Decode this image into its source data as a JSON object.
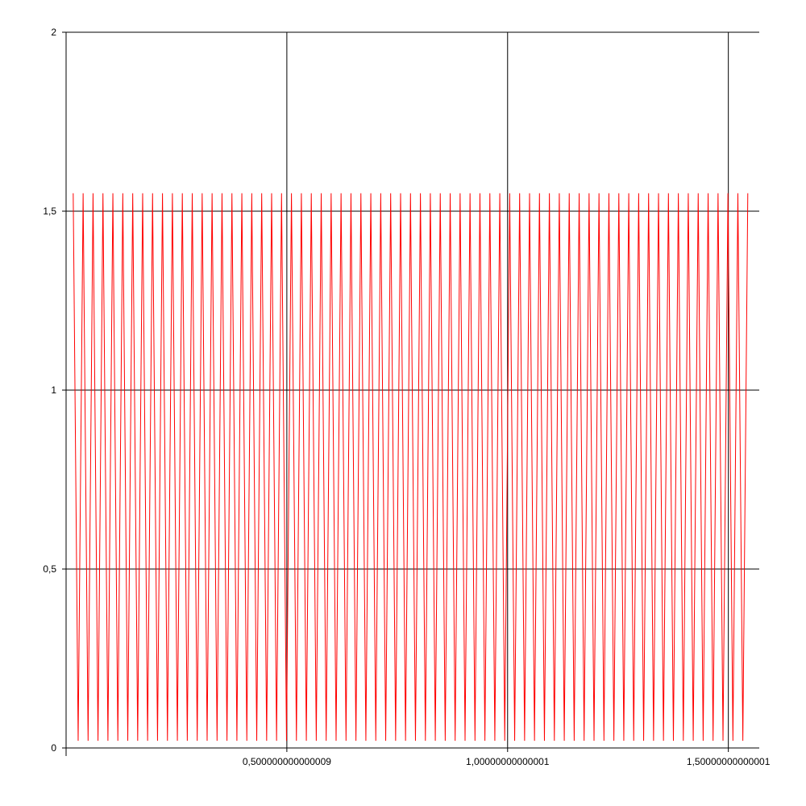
{
  "chart_data": {
    "type": "line",
    "title": "",
    "xlabel": "",
    "ylabel": "",
    "xlim": [
      0,
      1.57
    ],
    "ylim": [
      0,
      2
    ],
    "grid": true,
    "x_ticks": [
      {
        "value": 0.5,
        "label": "0,500000000000009"
      },
      {
        "value": 1.0,
        "label": "1,00000000000001"
      },
      {
        "value": 1.5,
        "label": "1,50000000000001"
      }
    ],
    "y_ticks": [
      {
        "value": 0,
        "label": "0"
      },
      {
        "value": 0.5,
        "label": "0,5"
      },
      {
        "value": 1,
        "label": "1"
      },
      {
        "value": 1.5,
        "label": "1,5"
      },
      {
        "value": 2,
        "label": "2"
      }
    ],
    "series": [
      {
        "color": "#ff0000",
        "pattern": "sawtooth",
        "x_start": 0.0161,
        "x_end": 1.5542,
        "period": 0.02247,
        "y_low": 0.02,
        "y_high": 1.55
      }
    ]
  },
  "colors": {
    "axis": "#000000",
    "grid": "#000000",
    "series": "#ff0000",
    "background": "#ffffff"
  }
}
